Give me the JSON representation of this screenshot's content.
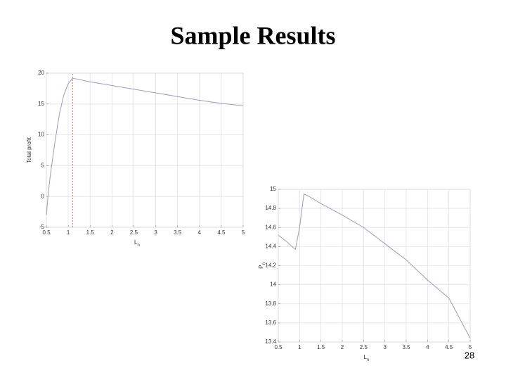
{
  "slide": {
    "title": "Sample Results",
    "page_number": "28"
  },
  "chart_data": [
    {
      "type": "line",
      "color": "#9a9cbc",
      "ylabel": "Total profit",
      "xlabel": "L",
      "xlabel_subscript": "n",
      "x": [
        0.5,
        0.55,
        0.6,
        0.7,
        0.8,
        0.9,
        1.0,
        1.1,
        1.5,
        2,
        2.5,
        3,
        3.5,
        4,
        4.5,
        5
      ],
      "values": [
        -3,
        1,
        4,
        9,
        13.5,
        16.5,
        18.3,
        19.2,
        18.6,
        18,
        17.4,
        16.8,
        16.2,
        15.6,
        15.1,
        14.7
      ],
      "marker_x": 1.1,
      "marker_color": "#e06a5a",
      "xlim": [
        0.5,
        5
      ],
      "xticks": [
        0.5,
        1,
        1.5,
        2,
        2.5,
        3,
        3.5,
        4,
        4.5,
        5
      ],
      "ylim": [
        -5,
        20
      ],
      "yticks": [
        -5,
        0,
        5,
        10,
        15,
        20
      ],
      "grid": true
    },
    {
      "type": "line",
      "color": "#9a9cbc",
      "ylabel": "P",
      "ylabel_subscript": "n",
      "xlabel": "L",
      "xlabel_subscript": "n",
      "x": [
        0.5,
        0.7,
        0.9,
        1.0,
        1.1,
        1.2,
        1.5,
        2,
        2.5,
        3,
        3.5,
        4,
        4.5,
        5
      ],
      "values": [
        14.52,
        14.45,
        14.37,
        14.6,
        14.95,
        14.93,
        14.85,
        14.73,
        14.6,
        14.43,
        14.26,
        14.05,
        13.86,
        13.44
      ],
      "xlim": [
        0.5,
        5
      ],
      "xticks": [
        0.5,
        1,
        1.5,
        2,
        2.5,
        3,
        3.5,
        4,
        4.5,
        5
      ],
      "ylim": [
        13.4,
        15
      ],
      "yticks": [
        13.4,
        13.6,
        13.8,
        14,
        14.2,
        14.4,
        14.6,
        14.8,
        15
      ],
      "grid": true
    }
  ]
}
